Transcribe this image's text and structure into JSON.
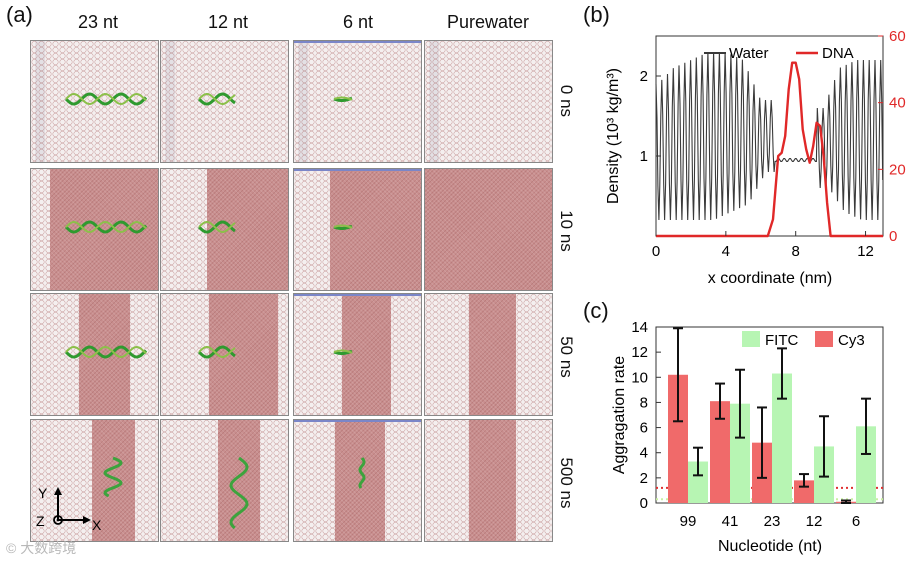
{
  "panel_a": {
    "letter": "(a)",
    "columns": [
      "23 nt",
      "12 nt",
      "6 nt",
      "Purewater"
    ],
    "rows": [
      "0 ns",
      "10 ns",
      "50 ns",
      "500 ns"
    ],
    "axes_labels": {
      "y": "Y",
      "z": "Z",
      "x": "X"
    }
  },
  "watermark": "© 大数跨境",
  "chart_data": [
    {
      "panel": "(b)",
      "type": "line",
      "xlabel": "x coordinate (nm)",
      "ylabel": "Density (10³ kg/m³)",
      "ylabel_right": "",
      "xlim": [
        0,
        13
      ],
      "ylim": [
        0,
        2.5
      ],
      "ylim_right": [
        0,
        60
      ],
      "x_ticks": [
        0,
        4,
        8,
        12
      ],
      "y_ticks": [
        1,
        2
      ],
      "y_ticks_right": [
        0,
        20,
        40,
        60
      ],
      "legend_position": "top",
      "series": [
        {
          "name": "Water",
          "axis": "left",
          "color": "#3a3a3a",
          "description_points": {
            "oscillation_peaks_left": [
              [
                0.1,
                1.9
              ],
              [
                1.0,
                2.1
              ],
              [
                2.0,
                2.2
              ],
              [
                3.0,
                2.3
              ],
              [
                4.0,
                2.3
              ],
              [
                5.0,
                2.2
              ],
              [
                6.0,
                1.7
              ]
            ],
            "oscillation_troughs_left": [
              [
                0.3,
                0.2
              ],
              [
                1.3,
                0.2
              ],
              [
                2.3,
                0.2
              ],
              [
                3.3,
                0.2
              ],
              [
                4.3,
                0.3
              ],
              [
                5.3,
                0.4
              ],
              [
                6.3,
                0.8
              ]
            ],
            "plateau": [
              [
                6.8,
                0.95
              ],
              [
                9.2,
                0.95
              ]
            ],
            "oscillation_peaks_right": [
              [
                9.6,
                1.6
              ],
              [
                10.5,
                2.1
              ],
              [
                11.5,
                2.2
              ],
              [
                12.5,
                2.2
              ]
            ],
            "oscillation_troughs_right": [
              [
                9.9,
                0.6
              ],
              [
                10.8,
                0.3
              ],
              [
                11.8,
                0.2
              ],
              [
                12.8,
                0.2
              ]
            ]
          },
          "period_nm": 0.33
        },
        {
          "name": "DNA",
          "axis": "right",
          "color": "#e02828",
          "x": [
            0,
            6.4,
            6.7,
            7.0,
            7.2,
            7.4,
            7.6,
            7.8,
            8.0,
            8.2,
            8.4,
            8.6,
            8.8,
            9.0,
            9.2,
            9.4,
            9.6,
            9.8,
            10.0,
            13
          ],
          "y": [
            0,
            0,
            5,
            24,
            25,
            30,
            44,
            52,
            52,
            47,
            32,
            26,
            22,
            27,
            34,
            33,
            24,
            10,
            0,
            0
          ]
        }
      ]
    },
    {
      "panel": "(c)",
      "type": "bar",
      "xlabel": "Nucleotide (nt)",
      "ylabel": "Aggragation rate",
      "categories": [
        "99",
        "41",
        "23",
        "12",
        "6"
      ],
      "ylim": [
        0,
        14
      ],
      "y_ticks": [
        0,
        2,
        4,
        6,
        8,
        10,
        12,
        14
      ],
      "legend_position": "top-right",
      "series": [
        {
          "name": "Cy3",
          "color": "#f06a6a",
          "values": [
            10.2,
            8.1,
            4.8,
            1.8,
            0.1
          ],
          "errors": [
            3.7,
            1.4,
            2.8,
            0.5,
            0.1
          ]
        },
        {
          "name": "FITC",
          "color": "#b7f5b3",
          "values": [
            3.3,
            7.9,
            10.3,
            4.5,
            6.1
          ],
          "errors": [
            1.1,
            2.7,
            2.0,
            2.4,
            2.2
          ]
        }
      ],
      "reference_lines": [
        {
          "color": "#e03030",
          "style": "dotted",
          "value": 1.2
        },
        {
          "color": "#c8f0a0",
          "style": "dotted",
          "value": 0.3
        }
      ]
    }
  ]
}
